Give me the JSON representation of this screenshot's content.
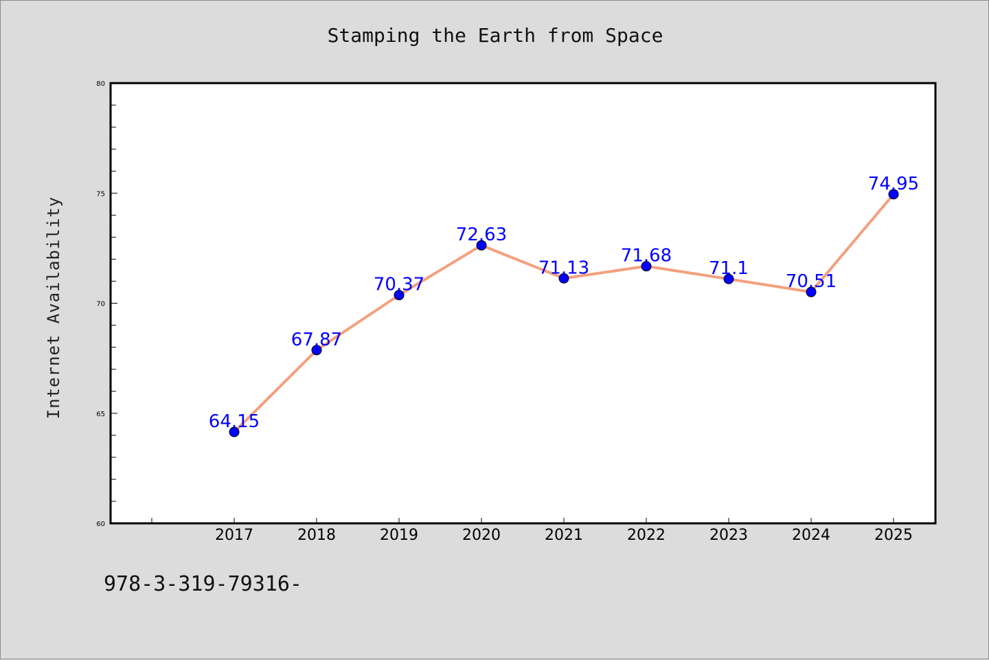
{
  "title": "Stamping the Earth from Space",
  "footnote": "978-3-319-79316-",
  "colors": {
    "background": "#dcdcdc",
    "plot_area": "#ffffff",
    "line": "#f4a07e",
    "marker": "#0000ff",
    "data_label": "#0000ff"
  },
  "chart_data": {
    "type": "line",
    "title": "Stamping the Earth from Space",
    "xlabel": "",
    "ylabel": "Internet Availability",
    "categories": [
      "2017",
      "2018",
      "2019",
      "2020",
      "2021",
      "2022",
      "2023",
      "2024",
      "2025"
    ],
    "series": [
      {
        "values": [
          64.15,
          67.87,
          70.37,
          72.63,
          71.13,
          71.68,
          71.1,
          70.51,
          74.95
        ]
      }
    ],
    "data_labels": [
      "64.15",
      "67.87",
      "70.37",
      "72.63",
      "71.13",
      "71.68",
      "71.1",
      "70.51",
      "74.95"
    ],
    "ylim": [
      60,
      80
    ],
    "y_ticks": [
      60,
      65,
      70,
      75,
      80
    ],
    "y_tick_labels": [
      "60",
      "65",
      "70",
      "75",
      "80"
    ],
    "grid": false,
    "legend": "none"
  }
}
